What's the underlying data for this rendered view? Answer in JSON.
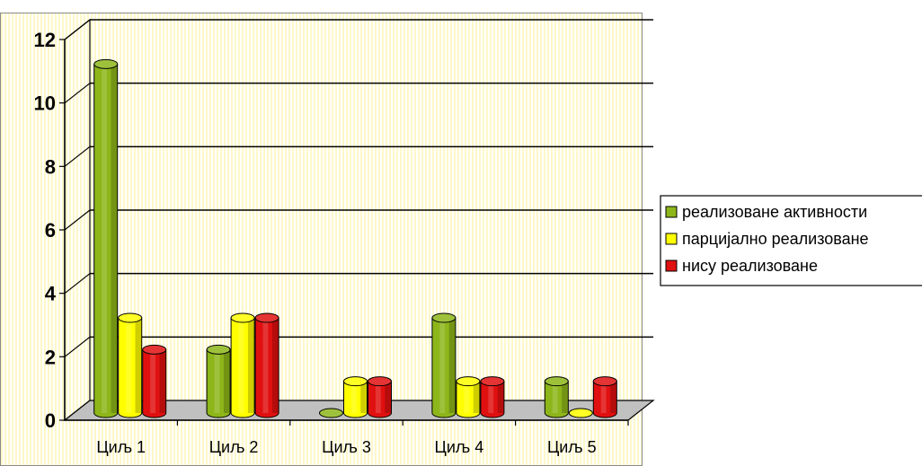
{
  "chart_data": {
    "type": "bar",
    "style": "3d-cylinder",
    "categories": [
      "Циљ 1",
      "Циљ 2",
      "Циљ 3",
      "Циљ 4",
      "Циљ 5"
    ],
    "series": [
      {
        "name": "реализоване активности",
        "color": "#8DB61A",
        "values": [
          11,
          2,
          0,
          3,
          1
        ]
      },
      {
        "name": "парцијално реализоване",
        "color": "#FFFF00",
        "values": [
          3,
          3,
          1,
          1,
          0
        ]
      },
      {
        "name": "нису реализоване",
        "color": "#E01010",
        "values": [
          2,
          3,
          1,
          1,
          1
        ]
      }
    ],
    "yticks": [
      "0",
      "2",
      "4",
      "6",
      "8",
      "10",
      "12"
    ],
    "ylim": [
      0,
      12
    ],
    "grid": true,
    "legend_position": "right"
  }
}
